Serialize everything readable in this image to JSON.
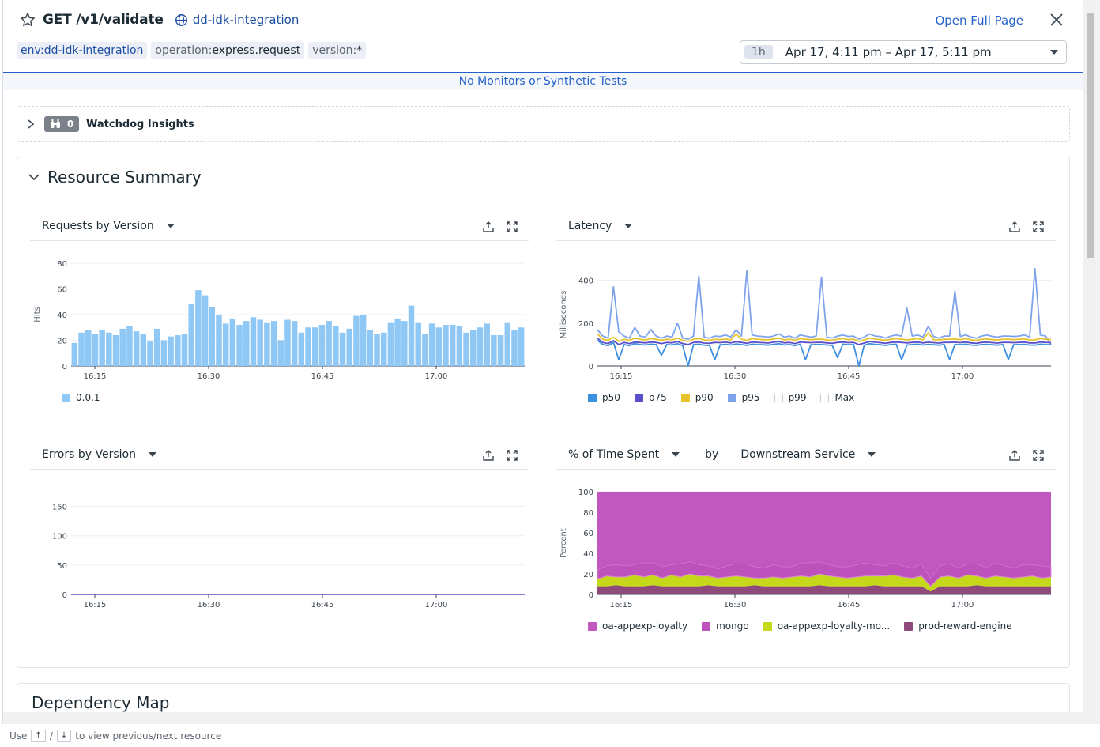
{
  "header": {
    "title": "GET /v1/validate",
    "service": "dd-idk-integration",
    "open_full_page": "Open Full Page",
    "tags": [
      {
        "key": "env:",
        "value": "dd-idk-integration"
      },
      {
        "key": "operation:",
        "value": "express.request"
      },
      {
        "key": "version:",
        "value": "*"
      }
    ],
    "time_badge": "1h",
    "time_range": "Apr 17, 4:11 pm – Apr 17, 5:11 pm"
  },
  "monitors_text": "No Monitors or Synthetic Tests",
  "watchdog": {
    "count": "0",
    "label": "Watchdog Insights"
  },
  "resource_summary": {
    "title": "Resource Summary"
  },
  "dependency_map": {
    "title": "Dependency Map"
  },
  "footer": {
    "use": "Use",
    "up": "↑",
    "slash": "/",
    "down": "↓",
    "rest": "to view previous/next resource"
  },
  "widgets": {
    "requests": {
      "title": "Requests by Version"
    },
    "latency": {
      "title": "Latency"
    },
    "errors": {
      "title": "Errors by Version"
    },
    "time_spent": {
      "title": "% of Time Spent",
      "by": "by",
      "group": "Downstream Service"
    }
  },
  "colors": {
    "accent": "#2360c7",
    "requests_bar": "#8fc8f5",
    "p50": "#3d8fe0",
    "p75": "#5a4fc8",
    "p90": "#e8c22a",
    "p95": "#7fa3ea",
    "oa_appexp_loyalty": "#c058c0",
    "mongo": "#bd52bd",
    "oa_appexp_loyalty_mo": "#c5d81a",
    "prod_reward_engine": "#8e4a7a"
  },
  "chart_data": [
    {
      "type": "bar",
      "title": "Requests by Version",
      "ylabel": "Hits",
      "ylim": [
        0,
        80
      ],
      "yticks": [
        0,
        20,
        40,
        60,
        80
      ],
      "xticks": [
        "16:15",
        "16:30",
        "16:45",
        "17:00"
      ],
      "series": [
        {
          "name": "0.0.1",
          "values": [
            18,
            26,
            28,
            25,
            28,
            26,
            24,
            29,
            31,
            27,
            25,
            19,
            29,
            20,
            23,
            24,
            25,
            48,
            59,
            55,
            46,
            40,
            33,
            37,
            32,
            35,
            38,
            36,
            34,
            35,
            20,
            36,
            35,
            26,
            30,
            30,
            32,
            35,
            31,
            26,
            29,
            39,
            40,
            28,
            25,
            26,
            34,
            37,
            35,
            47,
            34,
            25,
            33,
            30,
            32,
            32,
            31,
            26,
            28,
            30,
            33,
            24,
            24,
            34,
            28,
            30
          ]
        }
      ]
    },
    {
      "type": "line",
      "title": "Latency",
      "ylabel": "Milliseconds",
      "ylim": [
        0,
        480
      ],
      "yticks": [
        0,
        200,
        400
      ],
      "xticks": [
        "16:15",
        "16:30",
        "16:45",
        "17:00"
      ],
      "series": [
        {
          "name": "p50",
          "values": [
            120,
            100,
            95,
            110,
            30,
            100,
            95,
            105,
            100,
            98,
            102,
            100,
            50,
            100,
            98,
            104,
            95,
            0,
            100,
            102,
            97,
            96,
            30,
            99,
            101,
            98,
            103,
            100,
            96,
            102,
            100,
            99,
            97,
            101,
            104,
            98,
            100,
            95,
            102,
            30,
            99,
            100,
            100,
            98,
            96,
            40,
            102,
            99,
            100,
            0,
            97,
            104,
            101,
            99,
            96,
            100,
            102,
            30,
            98,
            100,
            102,
            98,
            101,
            99,
            97,
            100,
            30,
            101,
            99,
            102,
            98,
            96,
            100,
            101,
            99,
            97,
            100,
            30,
            99,
            100,
            101,
            98,
            97,
            102,
            100,
            99
          ]
        },
        {
          "name": "p75",
          "values": [
            130,
            110,
            105,
            118,
            100,
            110,
            105,
            112,
            110,
            108,
            112,
            110,
            105,
            110,
            108,
            114,
            105,
            100,
            110,
            112,
            107,
            106,
            110,
            109,
            111,
            108,
            113,
            110,
            106,
            112,
            110,
            109,
            107,
            111,
            114,
            108,
            110,
            105,
            112,
            110,
            109,
            110,
            110,
            108,
            106,
            110,
            112,
            109,
            110,
            100,
            107,
            114,
            111,
            109,
            106,
            110,
            112,
            110,
            108,
            110,
            112,
            108,
            111,
            109,
            107,
            110,
            110,
            111,
            109,
            112,
            108,
            106,
            110,
            111,
            109,
            107,
            110,
            110,
            109,
            110,
            111,
            108,
            107,
            112,
            110,
            109
          ]
        },
        {
          "name": "p90",
          "values": [
            150,
            125,
            120,
            135,
            115,
            125,
            120,
            130,
            125,
            122,
            128,
            125,
            120,
            125,
            122,
            130,
            120,
            115,
            125,
            128,
            122,
            120,
            125,
            123,
            126,
            122,
            150,
            125,
            120,
            128,
            125,
            123,
            122,
            126,
            130,
            122,
            125,
            120,
            128,
            125,
            123,
            125,
            125,
            122,
            120,
            125,
            128,
            123,
            125,
            115,
            122,
            130,
            126,
            123,
            120,
            125,
            128,
            125,
            122,
            125,
            128,
            122,
            155,
            123,
            122,
            125,
            125,
            126,
            123,
            128,
            122,
            120,
            125,
            126,
            123,
            122,
            125,
            125,
            123,
            125,
            126,
            122,
            122,
            128,
            125,
            123
          ]
        },
        {
          "name": "p95",
          "values": [
            170,
            140,
            130,
            370,
            160,
            140,
            130,
            180,
            140,
            135,
            170,
            140,
            130,
            140,
            135,
            200,
            130,
            125,
            140,
            420,
            135,
            130,
            140,
            138,
            145,
            135,
            170,
            140,
            445,
            145,
            140,
            138,
            135,
            140,
            150,
            135,
            140,
            130,
            145,
            140,
            135,
            140,
            415,
            135,
            130,
            140,
            145,
            138,
            140,
            125,
            135,
            150,
            140,
            138,
            130,
            140,
            145,
            140,
            270,
            140,
            145,
            135,
            185,
            138,
            130,
            140,
            140,
            350,
            138,
            145,
            135,
            130,
            140,
            145,
            138,
            135,
            140,
            140,
            138,
            140,
            145,
            135,
            455,
            145,
            140,
            100
          ]
        },
        {
          "name": "p99",
          "values": []
        },
        {
          "name": "Max",
          "values": []
        }
      ]
    },
    {
      "type": "line",
      "title": "Errors by Version",
      "ylim": [
        0,
        175
      ],
      "yticks": [
        0,
        50,
        100,
        150
      ],
      "xticks": [
        "16:15",
        "16:30",
        "16:45",
        "17:00"
      ],
      "series": [
        {
          "values": [
            0,
            0,
            0,
            0,
            0,
            0,
            0,
            0,
            0,
            0,
            0,
            0,
            0,
            0,
            0,
            0,
            0,
            0,
            0,
            0
          ]
        }
      ]
    },
    {
      "type": "area",
      "title": "% of Time Spent by Downstream Service",
      "ylabel": "Percent",
      "ylim": [
        0,
        100
      ],
      "yticks": [
        0,
        20,
        40,
        60,
        80,
        100
      ],
      "xticks": [
        "16:15",
        "16:30",
        "16:45",
        "17:00"
      ],
      "series": [
        {
          "name": "prod-reward-engine",
          "values": [
            8,
            8,
            9,
            8,
            8,
            8,
            9,
            8,
            8,
            8,
            8,
            8,
            9,
            8,
            8,
            8,
            8,
            9,
            8,
            8,
            8,
            8,
            8,
            8,
            9,
            8,
            8,
            8,
            8,
            8,
            9,
            8,
            8,
            8,
            8,
            8,
            3,
            8,
            8,
            8,
            8,
            9,
            8,
            8,
            8,
            8,
            8,
            8,
            8,
            8
          ]
        },
        {
          "name": "oa-appexp-loyalty-mo...",
          "values": [
            7,
            10,
            8,
            9,
            11,
            9,
            10,
            8,
            11,
            9,
            12,
            10,
            9,
            8,
            9,
            10,
            9,
            7,
            8,
            9,
            8,
            9,
            10,
            9,
            11,
            10,
            9,
            8,
            9,
            10,
            9,
            10,
            11,
            9,
            8,
            10,
            5,
            9,
            10,
            8,
            11,
            9,
            8,
            10,
            9,
            8,
            9,
            10,
            8,
            9
          ]
        },
        {
          "name": "mongo",
          "values": [
            9,
            10,
            12,
            11,
            10,
            14,
            12,
            11,
            10,
            13,
            12,
            11,
            10,
            9,
            11,
            12,
            13,
            11,
            10,
            12,
            11,
            10,
            13,
            14,
            12,
            11,
            10,
            11,
            12,
            13,
            11,
            10,
            12,
            11,
            10,
            12,
            8,
            11,
            12,
            10,
            11,
            12,
            10,
            13,
            11,
            10,
            12,
            11,
            12,
            10
          ]
        },
        {
          "name": "oa-appexp-loyalty",
          "values": [
            76,
            72,
            71,
            72,
            71,
            69,
            69,
            73,
            71,
            70,
            68,
            71,
            72,
            75,
            72,
            70,
            70,
            73,
            74,
            71,
            73,
            73,
            69,
            69,
            68,
            71,
            73,
            73,
            71,
            69,
            71,
            72,
            69,
            72,
            74,
            70,
            84,
            72,
            70,
            74,
            70,
            70,
            74,
            69,
            72,
            74,
            71,
            71,
            72,
            73
          ]
        }
      ]
    }
  ]
}
